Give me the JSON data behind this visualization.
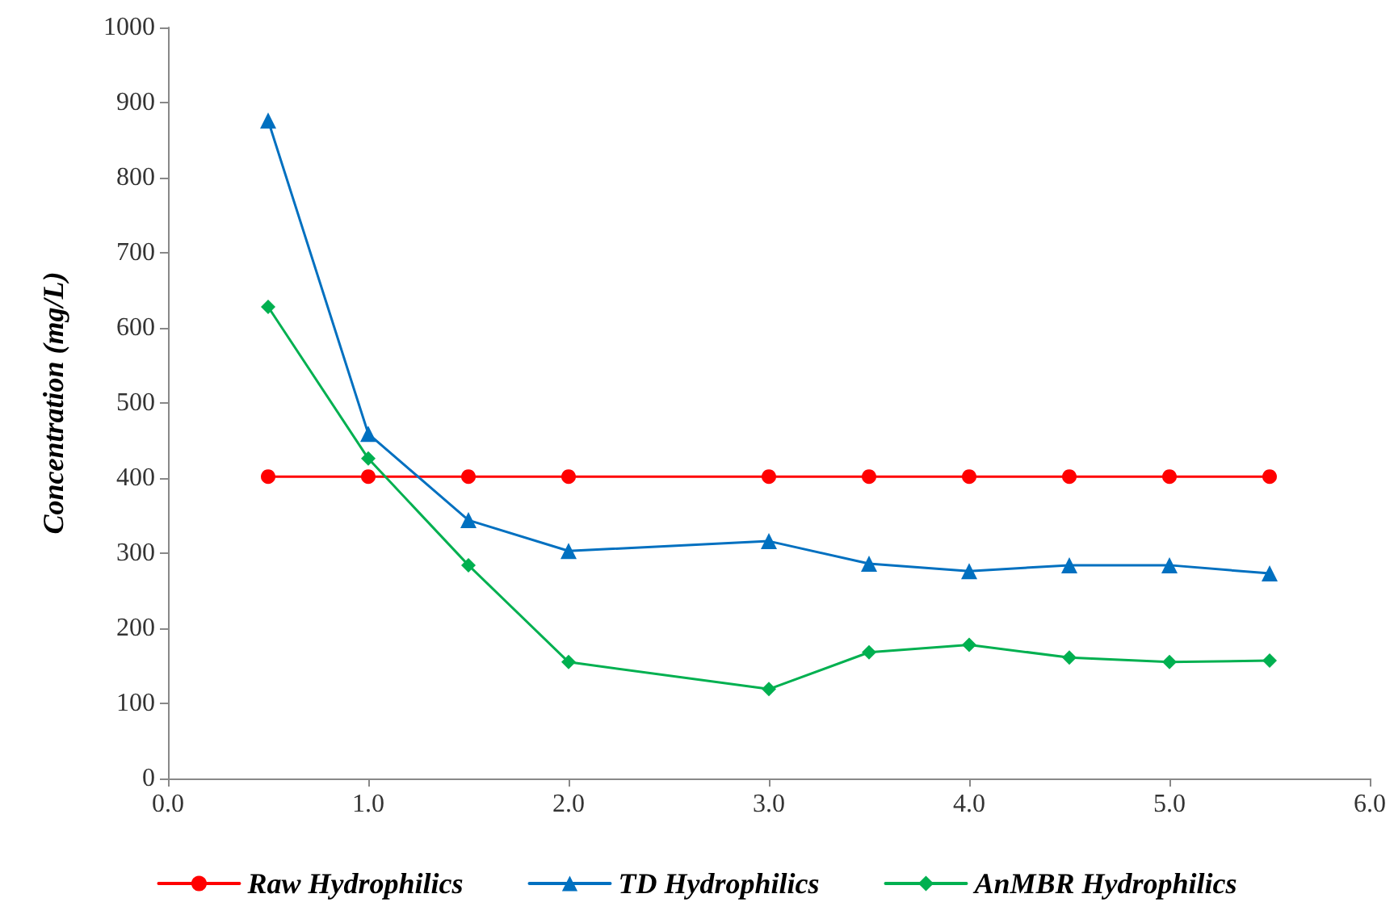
{
  "chart_data": {
    "type": "line",
    "ylabel": "Concentration (mg/L)",
    "x": [
      0.5,
      1,
      1.5,
      2,
      3,
      3.5,
      4,
      4.5,
      5,
      5.5
    ],
    "series": [
      {
        "name": "Raw Hydrophilics",
        "color": "#ff0000",
        "marker": "circle",
        "values": [
          402,
          402,
          402,
          402,
          402,
          402,
          402,
          402,
          402,
          402
        ]
      },
      {
        "name": "TD Hydrophilics",
        "color": "#0070c0",
        "marker": "triangle",
        "values": [
          876,
          459,
          344,
          303,
          316,
          286,
          276,
          284,
          284,
          273
        ]
      },
      {
        "name": "AnMBR Hydrophilics",
        "color": "#00b050",
        "marker": "diamond",
        "values": [
          628,
          426,
          284,
          155,
          119,
          168,
          178,
          161,
          155,
          157
        ]
      }
    ],
    "xlim": [
      0,
      6
    ],
    "xticks": [
      {
        "value": 0,
        "label": "0.0"
      },
      {
        "value": 1,
        "label": "1.0"
      },
      {
        "value": 2,
        "label": "2.0"
      },
      {
        "value": 3,
        "label": "3.0"
      },
      {
        "value": 4,
        "label": "4.0"
      },
      {
        "value": 5,
        "label": "5.0"
      },
      {
        "value": 6,
        "label": "6.0"
      }
    ],
    "ylim": [
      0,
      1000
    ],
    "yticks": [
      0,
      100,
      200,
      300,
      400,
      500,
      600,
      700,
      800,
      900,
      1000
    ],
    "grid": false,
    "legend": "bottom",
    "line_style": "solid"
  }
}
